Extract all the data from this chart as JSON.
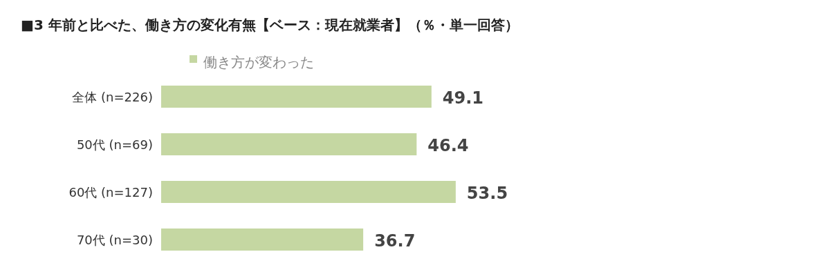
{
  "chart_data": {
    "type": "bar",
    "orientation": "horizontal",
    "title": "■3 年前と比べた、働き方の変化有無【ベース：現在就業者】（％・単一回答）",
    "categories": [
      "全体 (n=226)",
      "50代 (n=69)",
      "60代 (n=127)",
      "70代 (n=30)"
    ],
    "series": [
      {
        "name": "働き方が変わった",
        "color": "#c5d7a2",
        "values": [
          49.1,
          46.4,
          53.5,
          36.7
        ]
      }
    ],
    "data_labels": true,
    "legend": "top"
  }
}
